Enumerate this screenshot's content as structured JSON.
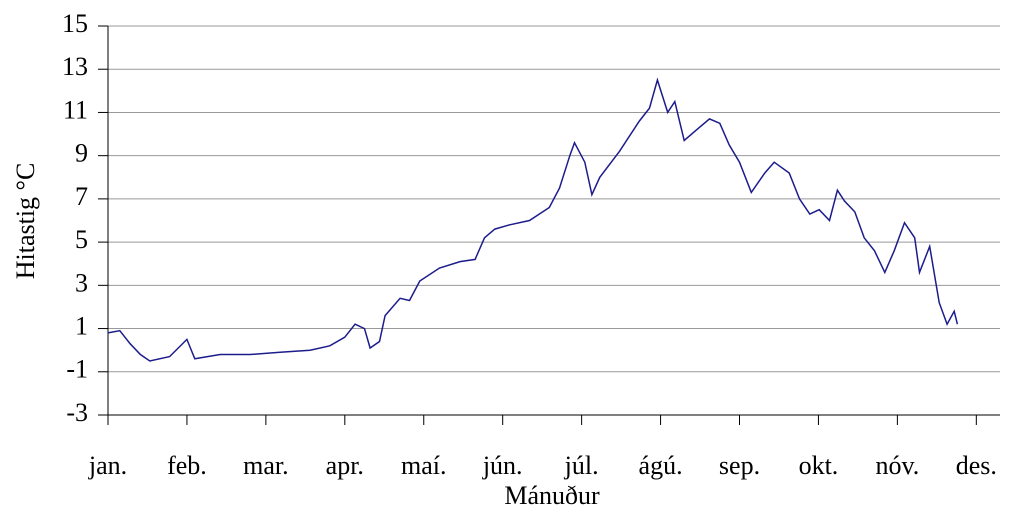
{
  "chart_data": {
    "type": "line",
    "y_label": "Hitastig °C",
    "x_label": "Mánuður",
    "categories": [
      "jan.",
      "feb.",
      "mar.",
      "apr.",
      "maí.",
      "jún.",
      "júl.",
      "ágú.",
      "sep.",
      "okt.",
      "nóv.",
      "des."
    ],
    "xlim": [
      0,
      11.3
    ],
    "ylim": [
      -3,
      15
    ],
    "yticks": [
      -3,
      -1,
      1,
      3,
      5,
      7,
      9,
      11,
      13,
      15
    ],
    "grid": true,
    "series": [
      {
        "name": "Hitastig",
        "color": "#1c1c8c",
        "x": [
          0,
          0.15,
          0.28,
          0.41,
          0.53,
          0.78,
          1.0,
          1.1,
          1.42,
          1.8,
          2.18,
          2.56,
          2.81,
          3.0,
          3.13,
          3.25,
          3.32,
          3.44,
          3.51,
          3.7,
          3.82,
          3.95,
          4.2,
          4.46,
          4.65,
          4.77,
          4.9,
          5.09,
          5.34,
          5.59,
          5.72,
          5.85,
          5.91,
          6.04,
          6.13,
          6.23,
          6.48,
          6.73,
          6.86,
          6.96,
          7.09,
          7.18,
          7.3,
          7.49,
          7.62,
          7.75,
          7.87,
          8.0,
          8.15,
          8.32,
          8.44,
          8.63,
          8.76,
          8.89,
          9.01,
          9.14,
          9.24,
          9.33,
          9.46,
          9.58,
          9.71,
          9.84,
          9.96,
          10.09,
          10.22,
          10.28,
          10.41,
          10.53,
          10.63,
          10.72,
          10.76
        ],
        "values": [
          0.8,
          0.9,
          0.3,
          -0.2,
          -0.5,
          -0.3,
          0.5,
          -0.4,
          -0.2,
          -0.2,
          -0.1,
          0,
          0.2,
          0.6,
          1.2,
          1.0,
          0.1,
          0.4,
          1.6,
          2.4,
          2.3,
          3.2,
          3.8,
          4.1,
          4.2,
          5.2,
          5.6,
          5.8,
          6.0,
          6.6,
          7.5,
          9.0,
          9.6,
          8.7,
          7.2,
          8.0,
          9.2,
          10.6,
          11.2,
          12.5,
          11.0,
          11.5,
          9.7,
          10.3,
          10.7,
          10.5,
          9.5,
          8.7,
          7.3,
          8.2,
          8.7,
          8.2,
          7.0,
          6.3,
          6.5,
          6.0,
          7.4,
          6.9,
          6.4,
          5.2,
          4.6,
          3.6,
          4.6,
          5.9,
          5.2,
          3.6,
          4.8,
          2.2,
          1.2,
          1.8,
          1.2
        ]
      }
    ]
  }
}
